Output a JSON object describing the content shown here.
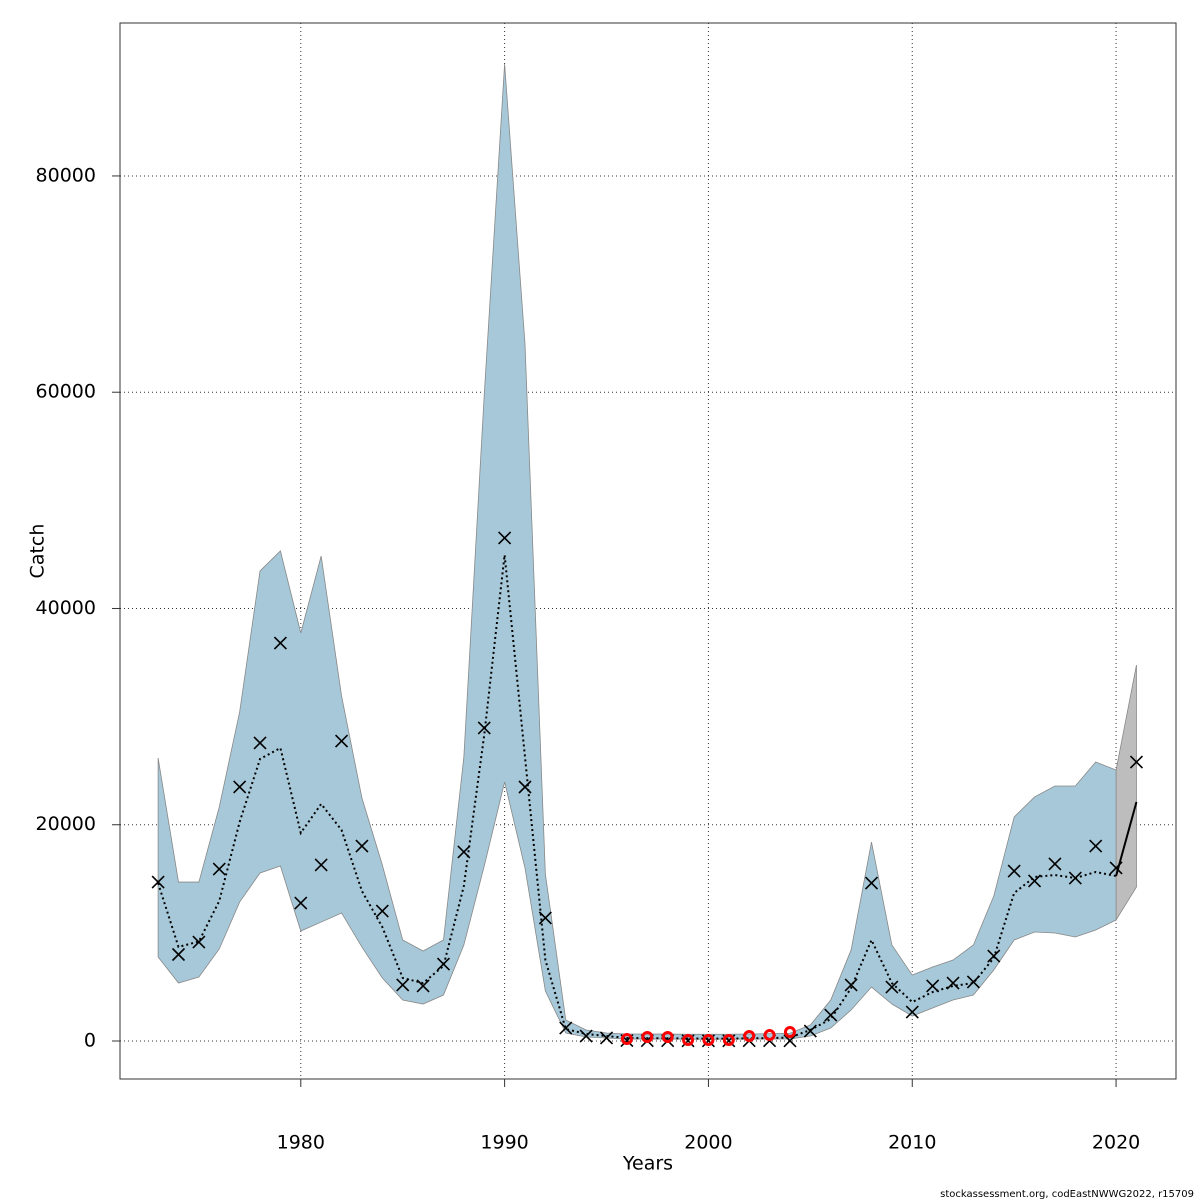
{
  "chart_data": {
    "type": "band-line",
    "xlabel": "Years",
    "ylabel": "Catch",
    "footer": "stockassessment.org, codEastNWWG2022, r15709",
    "xlim": [
      1971.13,
      2022.94
    ],
    "ylim": [
      -3514,
      94145
    ],
    "xticks": [
      1980,
      1990,
      2000,
      2010,
      2020
    ],
    "yticks": [
      0,
      20000,
      40000,
      60000,
      80000
    ],
    "grid": true,
    "x": [
      1973,
      1974,
      1975,
      1976,
      1977,
      1978,
      1979,
      1980,
      1981,
      1982,
      1983,
      1984,
      1985,
      1986,
      1987,
      1988,
      1989,
      1990,
      1991,
      1992,
      1993,
      1994,
      1995,
      1996,
      1997,
      1998,
      1999,
      2000,
      2001,
      2002,
      2003,
      2004,
      2005,
      2006,
      2007,
      2008,
      2009,
      2010,
      2011,
      2012,
      2013,
      2014,
      2015,
      2016,
      2017,
      2018,
      2019,
      2020
    ],
    "estimate": {
      "color": "#000000",
      "values": [
        14600,
        8700,
        9200,
        12950,
        20250,
        26080,
        27100,
        19240,
        21920,
        19510,
        13870,
        10540,
        5830,
        5360,
        6940,
        14330,
        28300,
        44950,
        26260,
        7490,
        1110,
        650,
        460,
        280,
        260,
        250,
        230,
        220,
        220,
        240,
        270,
        320,
        1020,
        2030,
        4900,
        9340,
        5360,
        3600,
        4530,
        5090,
        5360,
        7680,
        13690,
        15170,
        15350,
        15070,
        15630,
        15260
      ],
      "lower": [
        7770,
        5360,
        5920,
        8510,
        12850,
        15540,
        16180,
        10170,
        11000,
        11840,
        8690,
        5830,
        3790,
        3420,
        4250,
        8880,
        16180,
        23950,
        16000,
        4620,
        740,
        370,
        280,
        180,
        180,
        180,
        170,
        170,
        170,
        180,
        180,
        190,
        460,
        1200,
        2870,
        4990,
        3420,
        2310,
        3050,
        3790,
        4250,
        6570,
        9340,
        10080,
        9990,
        9620,
        10270,
        11190
      ],
      "upper": [
        26170,
        14700,
        14700,
        21640,
        30430,
        43470,
        45320,
        37730,
        44850,
        31910,
        22470,
        16280,
        9340,
        8320,
        9340,
        26260,
        59740,
        90350,
        64460,
        15440,
        1940,
        1020,
        740,
        650,
        640,
        640,
        620,
        620,
        620,
        650,
        680,
        720,
        1480,
        3790,
        8420,
        18400,
        8880,
        6100,
        6840,
        7490,
        8880,
        13410,
        20720,
        22570,
        23580,
        23580,
        25800,
        25060
      ],
      "band_color": "#a6c8d8"
    },
    "prediction": {
      "color": "#000000",
      "band_color": "#bdbdbd",
      "x": [
        2020,
        2021
      ],
      "values": [
        15260,
        22100
      ],
      "lower": [
        11190,
        14240
      ],
      "upper": [
        25060,
        34770
      ]
    },
    "observed": {
      "color": "#000000",
      "x": [
        1973,
        1974,
        1975,
        1976,
        1977,
        1978,
        1979,
        1980,
        1981,
        1982,
        1983,
        1984,
        1985,
        1986,
        1987,
        1988,
        1989,
        1990,
        1991,
        1992,
        1993,
        1994,
        1995,
        1996,
        1997,
        1998,
        1999,
        2000,
        2001,
        2002,
        2003,
        2004,
        2005,
        2006,
        2007,
        2008,
        2009,
        2010,
        2011,
        2012,
        2013,
        2014,
        2015,
        2016,
        2017,
        2018,
        2019,
        2020,
        2021
      ],
      "values": [
        14700,
        8000,
        9150,
        15900,
        23500,
        27560,
        36800,
        12760,
        16280,
        27740,
        18030,
        12020,
        5180,
        5090,
        7120,
        17480,
        28950,
        46520,
        23490,
        11380,
        1200,
        460,
        280,
        40,
        30,
        30,
        20,
        20,
        20,
        30,
        30,
        20,
        920,
        2400,
        5180,
        14610,
        4990,
        2680,
        5090,
        5360,
        5460,
        7860,
        15720,
        14800,
        16370,
        15070,
        18030,
        16000,
        25800
      ]
    },
    "flagged": {
      "color": "#ff0000",
      "x": [
        1996,
        1997,
        1998,
        1999,
        2000,
        2001,
        2002,
        2003,
        2004
      ],
      "values": [
        180,
        370,
        370,
        90,
        90,
        90,
        460,
        550,
        830
      ]
    }
  }
}
